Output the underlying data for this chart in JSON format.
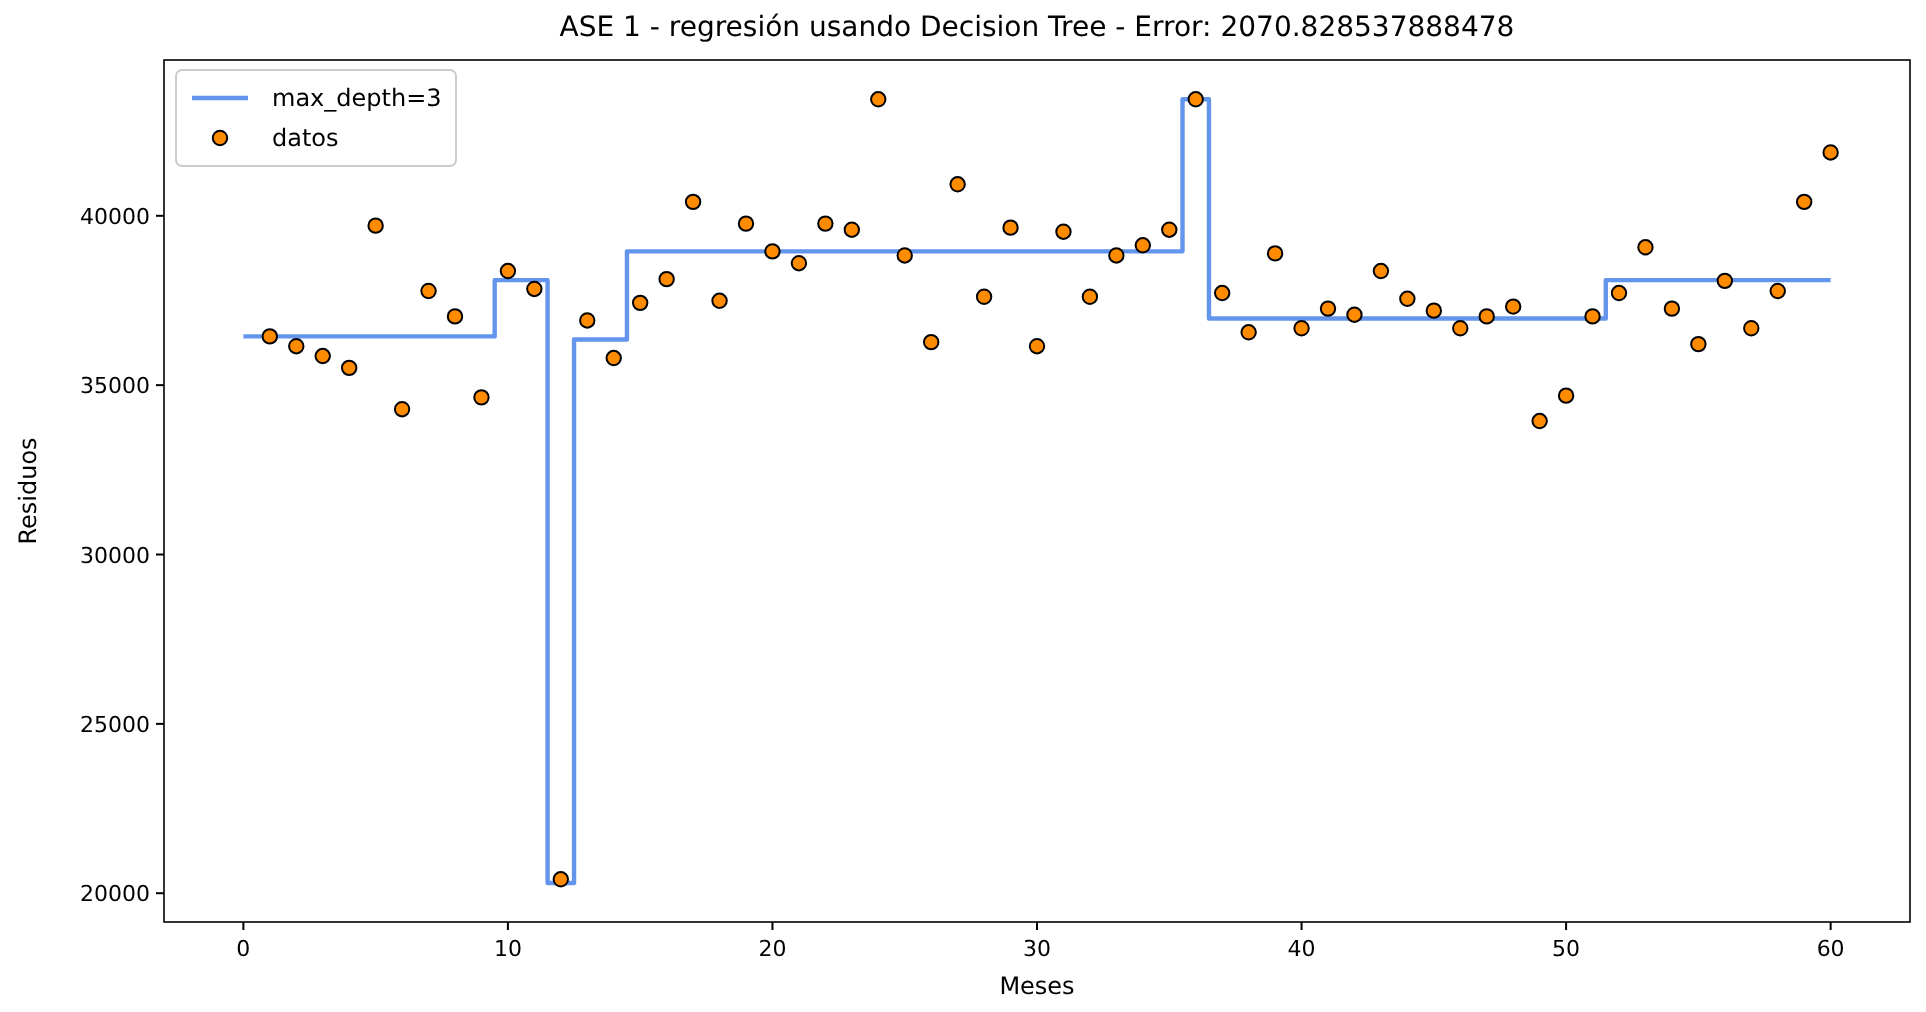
{
  "chart_data": {
    "type": "scatter",
    "title": "ASE 1 - regresión usando Decision Tree - Error: 2070.828537888478",
    "xlabel": "Meses",
    "ylabel": "Residuos",
    "xlim": [
      -3,
      63
    ],
    "xticks": [
      0,
      10,
      20,
      30,
      40,
      50,
      60
    ],
    "ylim": [
      19150,
      44600
    ],
    "yticks": [
      20000,
      25000,
      30000,
      35000,
      40000
    ],
    "legend": "top left",
    "grid": false,
    "series": [
      {
        "name": "max_depth=3",
        "type": "step",
        "color": "#6495ed",
        "marker": "none",
        "x": [
          0,
          9.5,
          11.5,
          12.5,
          14.5,
          35.5,
          36.5,
          51.5,
          60
        ],
        "values": [
          36440,
          38100,
          20300,
          36350,
          38950,
          43440,
          36970,
          38100,
          38100
        ]
      },
      {
        "name": "datos",
        "color": "#ff8c00",
        "marker": "circle",
        "x": [
          1,
          2,
          3,
          4,
          5,
          6,
          7,
          8,
          9,
          10,
          11,
          12,
          13,
          14,
          15,
          16,
          17,
          18,
          19,
          20,
          21,
          22,
          23,
          24,
          25,
          26,
          27,
          28,
          29,
          30,
          31,
          32,
          33,
          34,
          35,
          36,
          37,
          38,
          39,
          40,
          41,
          42,
          43,
          44,
          45,
          46,
          47,
          48,
          49,
          50,
          51,
          52,
          53,
          54,
          55,
          56,
          57,
          58,
          59,
          60
        ],
        "values": [
          36440,
          36150,
          35860,
          35510,
          39710,
          34290,
          37780,
          37030,
          34640,
          38370,
          37840,
          20410,
          36910,
          35800,
          37430,
          38130,
          40410,
          37490,
          39770,
          38950,
          38600,
          39770,
          39590,
          43440,
          38830,
          36270,
          40930,
          37610,
          39650,
          36150,
          39530,
          37610,
          38830,
          39130,
          39590,
          43440,
          37720,
          36560,
          38890,
          36680,
          37260,
          37080,
          38370,
          37550,
          37200,
          36680,
          37030,
          37320,
          33940,
          34690,
          37030,
          37720,
          39070,
          37260,
          36210,
          38080,
          36680,
          37780,
          40410,
          41870
        ]
      }
    ]
  }
}
